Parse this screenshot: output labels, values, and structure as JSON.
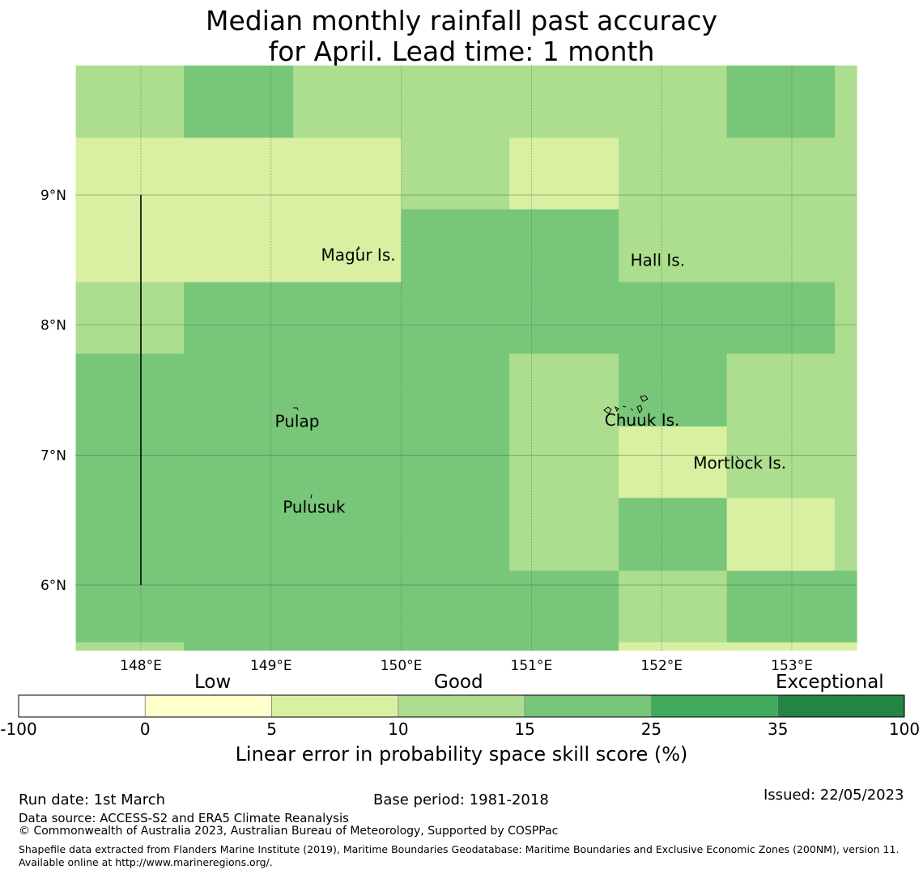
{
  "title": {
    "line1": "Median monthly rainfall past accuracy",
    "line2": "for April. Lead time: 1 month"
  },
  "map": {
    "lat_labels": [
      "9°N",
      "8°N",
      "7°N",
      "6°N"
    ],
    "lon_labels": [
      "148°E",
      "149°E",
      "150°E",
      "151°E",
      "152°E",
      "153°E"
    ],
    "lon_values": [
      148,
      149,
      150,
      151,
      152,
      153
    ],
    "lat_values": [
      9,
      8,
      7,
      6
    ],
    "places": [
      {
        "name": "Magur Is.",
        "lon": 149.67,
        "lat": 8.54
      },
      {
        "name": "Hall Is.",
        "lon": 151.97,
        "lat": 8.5
      },
      {
        "name": "Pulap",
        "lon": 149.2,
        "lat": 7.26
      },
      {
        "name": "Chuuk Is.",
        "lon": 151.85,
        "lat": 7.27
      },
      {
        "name": "Mortlock Is.",
        "lon": 152.6,
        "lat": 6.94
      },
      {
        "name": "Pulusuk",
        "lon": 149.33,
        "lat": 6.6
      }
    ],
    "skill_grid": {
      "lon_edges": [
        147.5,
        148.33,
        149.17,
        150.0,
        150.83,
        151.67,
        152.5,
        153.33,
        153.5
      ],
      "lat_edges_top_to_bottom": [
        10.0,
        9.44,
        8.89,
        8.33,
        7.78,
        7.22,
        6.67,
        6.11,
        5.56,
        5.5
      ],
      "class_rows": [
        [
          3,
          4,
          3,
          3,
          3,
          3,
          4,
          3
        ],
        [
          2,
          2,
          2,
          3,
          2,
          3,
          3,
          3
        ],
        [
          2,
          2,
          2,
          4,
          4,
          3,
          3,
          3
        ],
        [
          3,
          4,
          4,
          4,
          4,
          4,
          4,
          3
        ],
        [
          4,
          4,
          4,
          4,
          3,
          4,
          3,
          3
        ],
        [
          4,
          4,
          4,
          4,
          3,
          2,
          3,
          3
        ],
        [
          4,
          4,
          4,
          4,
          3,
          4,
          2,
          3
        ],
        [
          4,
          4,
          4,
          4,
          4,
          3,
          4,
          4
        ],
        [
          3,
          4,
          4,
          4,
          4,
          2,
          2,
          2
        ]
      ]
    },
    "boundary_line": {
      "lon": 148.0,
      "lat_from": 9.0,
      "lat_to": 6.0
    }
  },
  "colorbar": {
    "category_labels": {
      "low": "Low",
      "good": "Good",
      "exceptional": "Exceptional"
    },
    "bounds": [
      -100,
      0,
      5,
      10,
      15,
      25,
      35,
      100
    ],
    "tick_labels": [
      "-100",
      "0",
      "5",
      "10",
      "15",
      "25",
      "35",
      "100"
    ],
    "colors": [
      "#ffffff",
      "#ffffcc",
      "#d9f0a3",
      "#addd8e",
      "#78c679",
      "#41ab5d",
      "#238443"
    ],
    "axis_title": "Linear error in probability space skill score (%)"
  },
  "footer": {
    "run_date": "Run date: 1st March",
    "base_period": "Base period: 1981-2018",
    "issued": "Issued: 22/05/2023",
    "data_source": "Data source: ACCESS-S2 and ERA5 Climate Reanalysis",
    "copyright": "© Commonwealth of Australia 2023, Australian Bureau of Meteorology, Supported by COSPPac",
    "shapefile": "Shapefile data extracted from Flanders Marine Institute (2019), Maritime Boundaries Geodatabase: Maritime Boundaries and Exclusive Economic Zones (200NM), version 11. Available online at http://www.marineregions.org/."
  }
}
